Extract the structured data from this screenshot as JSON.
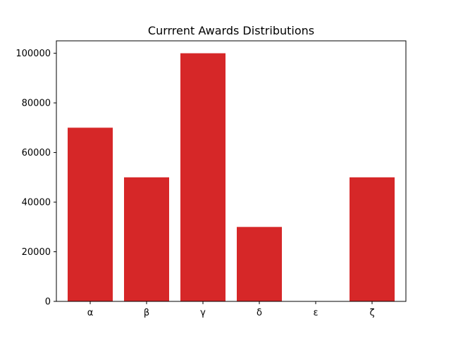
{
  "chart_data": {
    "type": "bar",
    "title": "Currrent Awards Distributions",
    "xlabel": "",
    "ylabel": "",
    "categories": [
      "α",
      "β",
      "γ",
      "δ",
      "ε",
      "ζ"
    ],
    "values": [
      70000,
      50000,
      100000,
      30000,
      0,
      50000
    ],
    "ylim": [
      0,
      105000
    ],
    "yticks": [
      0,
      20000,
      40000,
      60000,
      80000,
      100000
    ],
    "bar_color": "#d62728",
    "grid": false,
    "legend": "none"
  }
}
